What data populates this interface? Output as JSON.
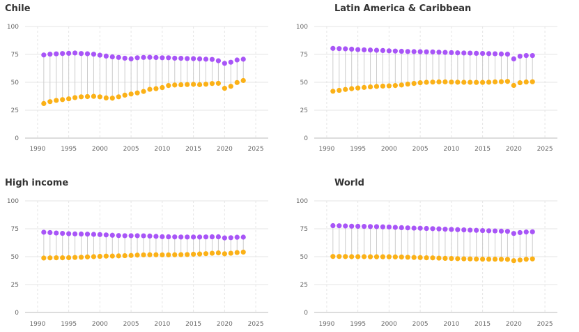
{
  "colors": {
    "series_a": "#a855f7",
    "series_b": "#fbb117",
    "connector": "#cccccc",
    "grid": "#e5e5e5",
    "text": "#333333",
    "tick_text": "#666666"
  },
  "chart_data": [
    {
      "type": "scatter",
      "subtype": "dumbbell",
      "title": "Chile",
      "xlim": [
        1988,
        2027
      ],
      "ylim": [
        0,
        100
      ],
      "xticks": [
        1990,
        1995,
        2000,
        2005,
        2010,
        2015,
        2020,
        2025
      ],
      "yticks": [
        0,
        25,
        50,
        75,
        100
      ],
      "grid": true,
      "x": [
        1991,
        1992,
        1993,
        1994,
        1995,
        1996,
        1997,
        1998,
        1999,
        2000,
        2001,
        2002,
        2003,
        2004,
        2005,
        2006,
        2007,
        2008,
        2009,
        2010,
        2011,
        2012,
        2013,
        2014,
        2015,
        2016,
        2017,
        2018,
        2019,
        2020,
        2021,
        2022,
        2023
      ],
      "series": [
        {
          "values": [
            74.5,
            75.2,
            75.5,
            75.8,
            76.0,
            76.3,
            75.8,
            75.6,
            75.2,
            74.3,
            73.5,
            72.8,
            72.3,
            71.6,
            71.0,
            72.0,
            72.3,
            72.4,
            72.2,
            72.0,
            72.0,
            71.6,
            71.5,
            71.3,
            71.2,
            71.0,
            70.7,
            70.5,
            69.3,
            67.0,
            68.0,
            70.0,
            70.7
          ]
        },
        {
          "values": [
            31.0,
            32.7,
            33.8,
            34.5,
            35.2,
            36.3,
            37.0,
            37.2,
            37.4,
            37.0,
            36.0,
            35.8,
            37.0,
            38.5,
            39.5,
            40.5,
            41.8,
            43.7,
            44.3,
            45.3,
            47.1,
            47.6,
            47.8,
            48.0,
            48.2,
            47.9,
            48.3,
            48.9,
            49.1,
            44.6,
            46.4,
            49.8,
            51.6
          ]
        }
      ]
    },
    {
      "type": "scatter",
      "subtype": "dumbbell",
      "title": "Latin America & Caribbean",
      "xlim": [
        1988,
        2027
      ],
      "ylim": [
        0,
        100
      ],
      "xticks": [
        1990,
        1995,
        2000,
        2005,
        2010,
        2015,
        2020,
        2025
      ],
      "yticks": [
        0,
        25,
        50,
        75,
        100
      ],
      "grid": true,
      "x": [
        1991,
        1992,
        1993,
        1994,
        1995,
        1996,
        1997,
        1998,
        1999,
        2000,
        2001,
        2002,
        2003,
        2004,
        2005,
        2006,
        2007,
        2008,
        2009,
        2010,
        2011,
        2012,
        2013,
        2014,
        2015,
        2016,
        2017,
        2018,
        2019,
        2020,
        2021,
        2022,
        2023
      ],
      "series": [
        {
          "values": [
            80.4,
            80.2,
            80.0,
            79.7,
            79.3,
            79.1,
            78.9,
            78.7,
            78.5,
            78.2,
            78.0,
            77.8,
            77.6,
            77.5,
            77.4,
            77.3,
            77.2,
            77.0,
            76.8,
            76.6,
            76.4,
            76.3,
            76.2,
            76.0,
            75.9,
            75.7,
            75.6,
            75.4,
            75.2,
            71.0,
            73.4,
            74.0,
            74.0
          ]
        },
        {
          "values": [
            42.0,
            42.8,
            43.6,
            44.3,
            44.9,
            45.4,
            45.9,
            46.3,
            46.6,
            46.8,
            47.1,
            47.6,
            48.4,
            49.0,
            49.6,
            50.0,
            50.2,
            50.4,
            50.4,
            50.2,
            50.1,
            50.0,
            50.0,
            49.9,
            49.9,
            50.1,
            50.4,
            50.6,
            50.8,
            47.2,
            49.6,
            50.3,
            50.5
          ]
        }
      ]
    },
    {
      "type": "scatter",
      "subtype": "dumbbell",
      "title": "High income",
      "xlim": [
        1988,
        2027
      ],
      "ylim": [
        0,
        100
      ],
      "xticks": [
        1990,
        1995,
        2000,
        2005,
        2010,
        2015,
        2020,
        2025
      ],
      "yticks": [
        0,
        25,
        50,
        75,
        100
      ],
      "grid": true,
      "x": [
        1991,
        1992,
        1993,
        1994,
        1995,
        1996,
        1997,
        1998,
        1999,
        2000,
        2001,
        2002,
        2003,
        2004,
        2005,
        2006,
        2007,
        2008,
        2009,
        2010,
        2011,
        2012,
        2013,
        2014,
        2015,
        2016,
        2017,
        2018,
        2019,
        2020,
        2021,
        2022,
        2023
      ],
      "series": [
        {
          "values": [
            71.9,
            71.6,
            71.2,
            70.9,
            70.6,
            70.4,
            70.3,
            70.2,
            70.0,
            69.8,
            69.5,
            69.2,
            68.9,
            68.8,
            68.8,
            68.8,
            68.7,
            68.5,
            68.2,
            67.9,
            67.8,
            67.7,
            67.6,
            67.6,
            67.6,
            67.6,
            67.7,
            67.8,
            67.8,
            66.8,
            67.0,
            67.4,
            67.5
          ]
        },
        {
          "values": [
            48.8,
            48.9,
            49.0,
            49.0,
            49.1,
            49.3,
            49.5,
            49.8,
            50.0,
            50.3,
            50.5,
            50.6,
            50.7,
            50.9,
            51.1,
            51.4,
            51.6,
            51.7,
            51.7,
            51.6,
            51.6,
            51.7,
            51.8,
            51.9,
            52.2,
            52.4,
            52.7,
            53.1,
            53.4,
            52.6,
            53.1,
            53.7,
            54.1
          ]
        }
      ]
    },
    {
      "type": "scatter",
      "subtype": "dumbbell",
      "title": "World",
      "xlim": [
        1988,
        2027
      ],
      "ylim": [
        0,
        100
      ],
      "xticks": [
        1990,
        1995,
        2000,
        2005,
        2010,
        2015,
        2020,
        2025
      ],
      "yticks": [
        0,
        25,
        50,
        75,
        100
      ],
      "grid": true,
      "x": [
        1991,
        1992,
        1993,
        1994,
        1995,
        1996,
        1997,
        1998,
        1999,
        2000,
        2001,
        2002,
        2003,
        2004,
        2005,
        2006,
        2007,
        2008,
        2009,
        2010,
        2011,
        2012,
        2013,
        2014,
        2015,
        2016,
        2017,
        2018,
        2019,
        2020,
        2021,
        2022,
        2023
      ],
      "series": [
        {
          "values": [
            77.8,
            77.7,
            77.5,
            77.3,
            77.2,
            77.1,
            77.0,
            76.9,
            76.7,
            76.6,
            76.3,
            76.0,
            75.8,
            75.6,
            75.5,
            75.3,
            75.1,
            74.9,
            74.6,
            74.4,
            74.2,
            74.0,
            73.8,
            73.6,
            73.4,
            73.2,
            73.1,
            72.9,
            72.7,
            70.8,
            71.6,
            72.1,
            72.3
          ]
        },
        {
          "values": [
            50.2,
            50.2,
            50.1,
            50.0,
            50.0,
            50.0,
            49.9,
            49.9,
            49.9,
            49.9,
            49.8,
            49.7,
            49.5,
            49.3,
            49.2,
            49.0,
            48.9,
            48.7,
            48.5,
            48.4,
            48.2,
            48.1,
            48.0,
            47.9,
            47.8,
            47.8,
            47.8,
            47.7,
            47.6,
            46.4,
            47.0,
            47.7,
            48.0
          ]
        }
      ]
    }
  ]
}
